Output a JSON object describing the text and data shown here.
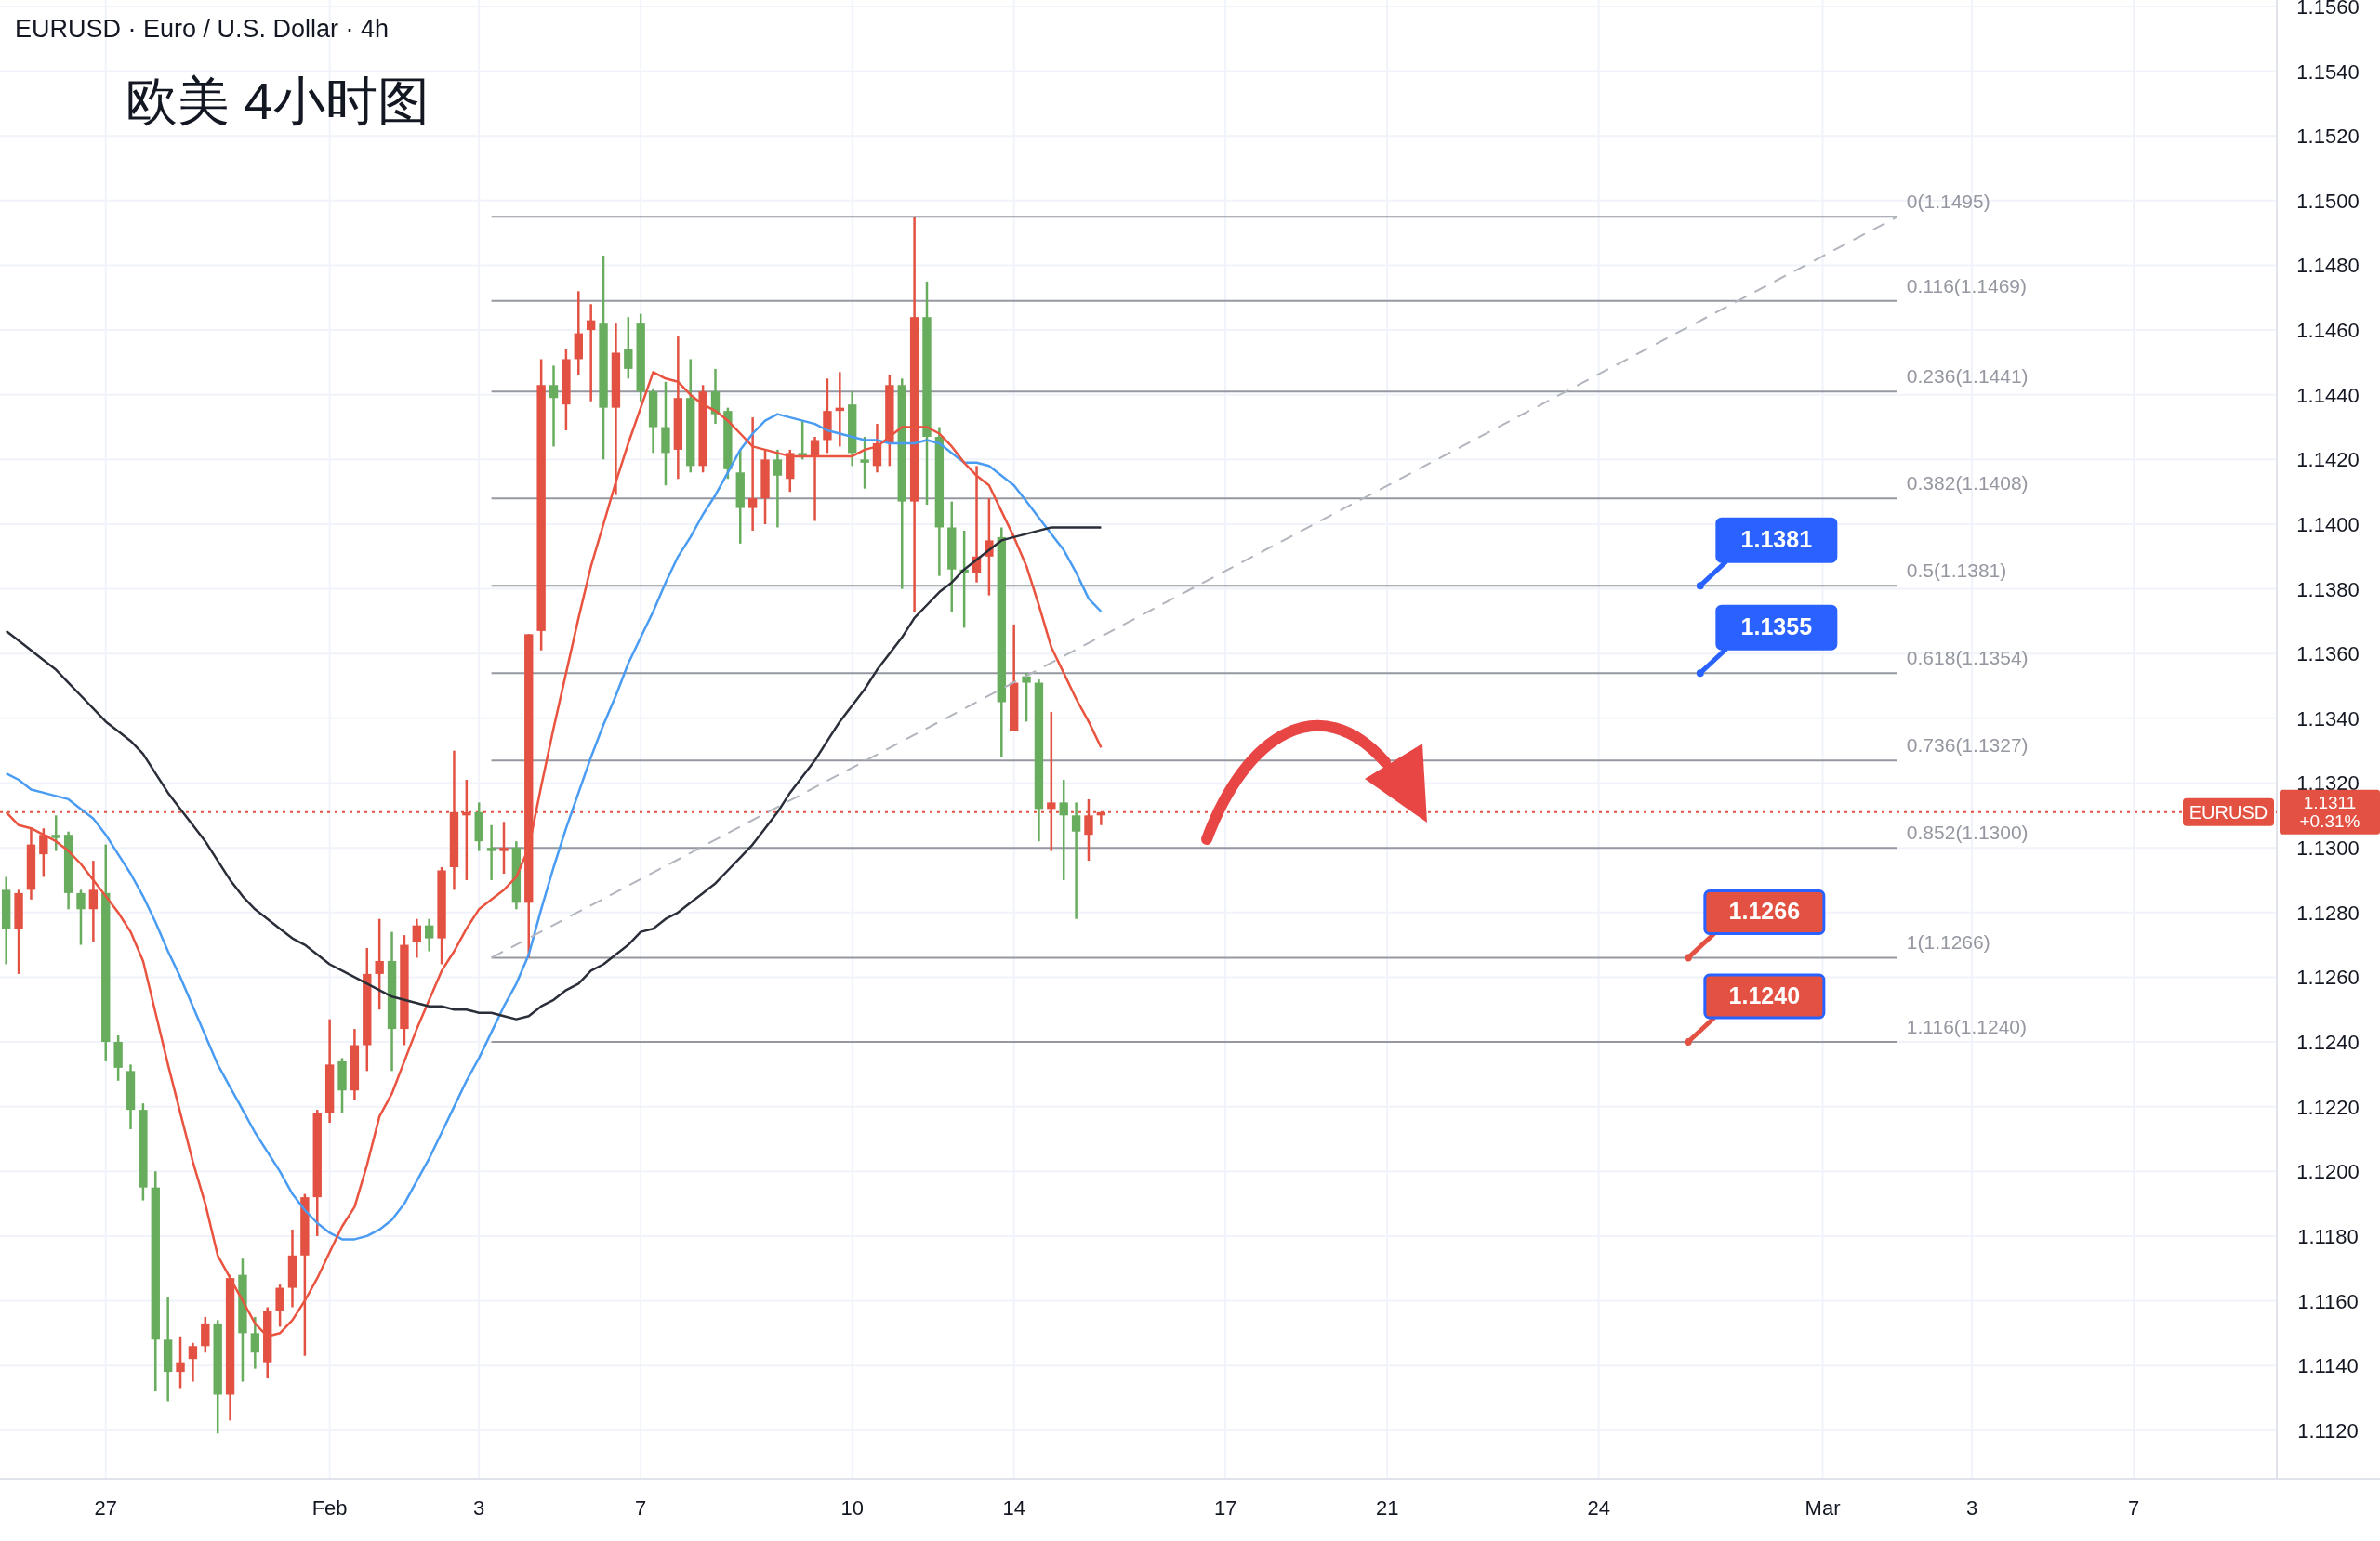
{
  "chart_data": {
    "type": "candlestick",
    "title": "EURUSD · Euro / U.S. Dollar · 4h",
    "subtitle": "欧美 4小时图",
    "categories": [
      null,
      null,
      null,
      null,
      null,
      null,
      null,
      null,
      "27",
      null,
      null,
      null,
      null,
      null,
      null,
      null,
      null,
      null,
      null,
      null,
      null,
      null,
      null,
      null,
      null,
      null,
      "Feb",
      null,
      null,
      null,
      null,
      null,
      null,
      null,
      null,
      null,
      null,
      null,
      "3",
      null,
      null,
      null,
      null,
      null,
      null,
      null,
      null,
      null,
      null,
      null,
      null,
      "7",
      null,
      null,
      null,
      null,
      null,
      null,
      null,
      null,
      null,
      null,
      null,
      null,
      null,
      null,
      null,
      null,
      "10",
      null,
      null,
      null,
      null,
      null,
      null,
      null,
      null,
      null,
      null,
      null,
      null,
      "14",
      null,
      null,
      null,
      null,
      null,
      null,
      null,
      null,
      null,
      null,
      null,
      null,
      null,
      null,
      null,
      null,
      "17",
      null,
      null,
      null,
      null,
      null,
      null,
      null,
      null,
      null,
      null,
      null,
      null,
      "21",
      null,
      null,
      null,
      null,
      null,
      null,
      null,
      null,
      null,
      null,
      null,
      null,
      null,
      null,
      null,
      null,
      "24",
      null,
      null,
      null,
      null,
      null,
      null,
      null,
      null,
      null,
      null,
      null,
      null,
      null,
      null,
      null,
      null,
      null,
      "Mar",
      null,
      null,
      null,
      null,
      null,
      null,
      null,
      null,
      null,
      null,
      null,
      "3",
      null,
      null,
      null,
      null,
      null,
      null,
      null,
      null,
      null,
      null,
      null,
      null,
      "7",
      null,
      null,
      null,
      null,
      null,
      null,
      null,
      null,
      null,
      null,
      null
    ],
    "ohlc": [
      [
        1.1287,
        1.1291,
        1.1264,
        1.1275
      ],
      [
        1.1275,
        1.1287,
        1.1261,
        1.1286
      ],
      [
        1.1287,
        1.1306,
        1.1284,
        1.1301
      ],
      [
        1.1298,
        1.1306,
        1.1291,
        1.1304
      ],
      [
        1.1304,
        1.131,
        1.1299,
        1.1303
      ],
      [
        1.1304,
        1.1305,
        1.1281,
        1.1286
      ],
      [
        1.1286,
        1.1287,
        1.127,
        1.1281
      ],
      [
        1.1281,
        1.1296,
        1.1271,
        1.1287
      ],
      [
        1.1286,
        1.1301,
        1.1234,
        1.124
      ],
      [
        1.124,
        1.1242,
        1.1228,
        1.1232
      ],
      [
        1.1231,
        1.1233,
        1.1213,
        1.1219
      ],
      [
        1.1219,
        1.1221,
        1.1191,
        1.1195
      ],
      [
        1.1195,
        1.12,
        1.1132,
        1.1148
      ],
      [
        1.1148,
        1.1161,
        1.1129,
        1.1138
      ],
      [
        1.1138,
        1.1149,
        1.1133,
        1.1141
      ],
      [
        1.1142,
        1.1147,
        1.1135,
        1.1146
      ],
      [
        1.1146,
        1.1155,
        1.1144,
        1.1153
      ],
      [
        1.1153,
        1.1154,
        1.1119,
        1.1131
      ],
      [
        1.1131,
        1.1168,
        1.1123,
        1.1167
      ],
      [
        1.1168,
        1.1173,
        1.1135,
        1.115
      ],
      [
        1.115,
        1.1155,
        1.1139,
        1.1144
      ],
      [
        1.1141,
        1.1158,
        1.1136,
        1.1157
      ],
      [
        1.1157,
        1.1165,
        1.1152,
        1.1164
      ],
      [
        1.1164,
        1.1182,
        1.1158,
        1.1174
      ],
      [
        1.1174,
        1.1193,
        1.1143,
        1.1192
      ],
      [
        1.1192,
        1.1219,
        1.118,
        1.1218
      ],
      [
        1.1218,
        1.1247,
        1.1215,
        1.1233
      ],
      [
        1.1234,
        1.1235,
        1.1218,
        1.1225
      ],
      [
        1.1225,
        1.1244,
        1.1222,
        1.1239
      ],
      [
        1.1239,
        1.1269,
        1.1231,
        1.1261
      ],
      [
        1.1261,
        1.1278,
        1.125,
        1.1265
      ],
      [
        1.1265,
        1.1274,
        1.1231,
        1.1244
      ],
      [
        1.1244,
        1.1273,
        1.1239,
        1.127
      ],
      [
        1.1271,
        1.1278,
        1.1266,
        1.1276
      ],
      [
        1.1276,
        1.1278,
        1.1268,
        1.1272
      ],
      [
        1.1272,
        1.1294,
        1.1264,
        1.1293
      ],
      [
        1.1294,
        1.133,
        1.1287,
        1.1311
      ],
      [
        1.131,
        1.1321,
        1.129,
        1.1311
      ],
      [
        1.1311,
        1.1314,
        1.1299,
        1.1302
      ],
      [
        1.13,
        1.1307,
        1.129,
        1.1299
      ],
      [
        1.1299,
        1.1308,
        1.1292,
        1.13
      ],
      [
        1.13,
        1.1302,
        1.1281,
        1.1283
      ],
      [
        1.1283,
        1.1366,
        1.1266,
        1.1366
      ],
      [
        1.1367,
        1.1451,
        1.1361,
        1.1443
      ],
      [
        1.1443,
        1.1449,
        1.1424,
        1.1439
      ],
      [
        1.1437,
        1.1454,
        1.1429,
        1.1451
      ],
      [
        1.1451,
        1.1472,
        1.1446,
        1.1459
      ],
      [
        1.146,
        1.1468,
        1.1438,
        1.1463
      ],
      [
        1.1462,
        1.1483,
        1.142,
        1.1436
      ],
      [
        1.1436,
        1.1462,
        1.1409,
        1.1453
      ],
      [
        1.1454,
        1.1464,
        1.1445,
        1.1448
      ],
      [
        1.1462,
        1.1465,
        1.1438,
        1.1441
      ],
      [
        1.1441,
        1.1442,
        1.1422,
        1.143
      ],
      [
        1.143,
        1.1444,
        1.1412,
        1.1422
      ],
      [
        1.1423,
        1.1458,
        1.1414,
        1.1439
      ],
      [
        1.1439,
        1.1451,
        1.1416,
        1.1418
      ],
      [
        1.1418,
        1.1443,
        1.1416,
        1.1441
      ],
      [
        1.1441,
        1.1448,
        1.1431,
        1.1434
      ],
      [
        1.1435,
        1.1436,
        1.1414,
        1.1417
      ],
      [
        1.1416,
        1.1423,
        1.1394,
        1.1405
      ],
      [
        1.1405,
        1.1433,
        1.1398,
        1.1408
      ],
      [
        1.1408,
        1.1423,
        1.14,
        1.142
      ],
      [
        1.142,
        1.1423,
        1.1399,
        1.1415
      ],
      [
        1.1414,
        1.1423,
        1.141,
        1.1422
      ],
      [
        1.1422,
        1.1432,
        1.142,
        1.1421
      ],
      [
        1.1421,
        1.1427,
        1.1401,
        1.1426
      ],
      [
        1.1426,
        1.1445,
        1.1422,
        1.1435
      ],
      [
        1.1435,
        1.1447,
        1.1424,
        1.1436
      ],
      [
        1.1437,
        1.1441,
        1.1418,
        1.1422
      ],
      [
        1.142,
        1.1427,
        1.1411,
        1.1419
      ],
      [
        1.1418,
        1.1431,
        1.1416,
        1.1425
      ],
      [
        1.1425,
        1.1446,
        1.1418,
        1.1443
      ],
      [
        1.1443,
        1.1445,
        1.138,
        1.1407
      ],
      [
        1.1407,
        1.1495,
        1.1373,
        1.1464
      ],
      [
        1.1464,
        1.1475,
        1.1406,
        1.1427
      ],
      [
        1.1427,
        1.143,
        1.1384,
        1.1399
      ],
      [
        1.1399,
        1.1407,
        1.1373,
        1.1386
      ],
      [
        1.1386,
        1.1398,
        1.1368,
        1.1385
      ],
      [
        1.1385,
        1.1418,
        1.1382,
        1.139
      ],
      [
        1.139,
        1.1408,
        1.1378,
        1.1395
      ],
      [
        1.1396,
        1.1399,
        1.1328,
        1.1345
      ],
      [
        1.1336,
        1.1369,
        1.1336,
        1.1351
      ],
      [
        1.1353,
        1.1354,
        1.1339,
        1.1351
      ],
      [
        1.1351,
        1.1352,
        1.1302,
        1.1312
      ],
      [
        1.1312,
        1.1342,
        1.1299,
        1.1314
      ],
      [
        1.1314,
        1.1321,
        1.129,
        1.131
      ],
      [
        1.131,
        1.1314,
        1.1278,
        1.1305
      ],
      [
        1.1304,
        1.1315,
        1.1296,
        1.131
      ],
      [
        1.131,
        1.1311,
        1.1307,
        1.1311
      ],
      null,
      null,
      null,
      null,
      null,
      null,
      null,
      null,
      null,
      null,
      null,
      null,
      null,
      null,
      null,
      null,
      null,
      null,
      null,
      null,
      null,
      null,
      null,
      null,
      null,
      null,
      null,
      null,
      null,
      null,
      null,
      null,
      null,
      null,
      null,
      null,
      null,
      null,
      null,
      null,
      null,
      null,
      null,
      null,
      null,
      null,
      null,
      null,
      null,
      null,
      null,
      null,
      null,
      null,
      null,
      null,
      null,
      null,
      null,
      null,
      null,
      null,
      null,
      null,
      null,
      null,
      null,
      null,
      null,
      null,
      null,
      null,
      null,
      null,
      null,
      null,
      null,
      null,
      null,
      null,
      null,
      null,
      null,
      null,
      null,
      null,
      null,
      null,
      null,
      null,
      null,
      null,
      null,
      null
    ],
    "colors": [
      "#68ad5d",
      "#e25141",
      "#e25141",
      "#e25141",
      "#68ad5d",
      "#68ad5d",
      "#68ad5d",
      "#e25141",
      "#68ad5d",
      "#68ad5d",
      "#68ad5d",
      "#68ad5d",
      "#68ad5d",
      "#68ad5d",
      "#e25141",
      "#e25141",
      "#e25141",
      "#68ad5d",
      "#e25141",
      "#68ad5d",
      "#68ad5d",
      "#e25141",
      "#e25141",
      "#e25141",
      "#e25141",
      "#e25141",
      "#e25141",
      "#68ad5d",
      "#e25141",
      "#e25141",
      "#e25141",
      "#68ad5d",
      "#e25141",
      "#e25141",
      "#68ad5d",
      "#e25141",
      "#e25141",
      "#e25141",
      "#68ad5d",
      "#68ad5d",
      "#e25141",
      "#68ad5d",
      "#e25141",
      "#e25141",
      "#68ad5d",
      "#e25141",
      "#e25141",
      "#e25141",
      "#68ad5d",
      "#e25141",
      "#68ad5d",
      "#68ad5d",
      "#68ad5d",
      "#68ad5d",
      "#e25141",
      "#68ad5d",
      "#e25141",
      "#68ad5d",
      "#68ad5d",
      "#68ad5d",
      "#e25141",
      "#e25141",
      "#68ad5d",
      "#e25141",
      "#68ad5d",
      "#e25141",
      "#e25141",
      "#e25141",
      "#68ad5d",
      "#68ad5d",
      "#e25141",
      "#e25141",
      "#68ad5d",
      "#e25141",
      "#68ad5d",
      "#68ad5d",
      "#68ad5d",
      "#68ad5d",
      "#e25141",
      "#e25141",
      "#68ad5d",
      "#e25141",
      "#68ad5d",
      "#68ad5d",
      "#e25141",
      "#68ad5d",
      "#68ad5d",
      "#e25141",
      "#e25141",
      null,
      null,
      null,
      null,
      null,
      null,
      null,
      null,
      null,
      null,
      null,
      null,
      null,
      null,
      null,
      null,
      null,
      null,
      null,
      null,
      null,
      null,
      null,
      null,
      null,
      null,
      null,
      null,
      null,
      null,
      null,
      null,
      null,
      null,
      null,
      null,
      null,
      null,
      null,
      null,
      null,
      null,
      null,
      null,
      null,
      null,
      null,
      null,
      null,
      null,
      null,
      null,
      null,
      null,
      null,
      null,
      null,
      null,
      null,
      null,
      null,
      null,
      null,
      null,
      null,
      null,
      null,
      null,
      null,
      null,
      null,
      null,
      null,
      null,
      null,
      null,
      null,
      null,
      null,
      null,
      null,
      null,
      null,
      null,
      null,
      null,
      null,
      null,
      null,
      null,
      null,
      null,
      null,
      null
    ],
    "series": [
      {
        "type": "line",
        "color": "#4a9cf2",
        "values": [
          1.1323,
          1.1321,
          1.1318,
          1.1317,
          1.1316,
          1.1315,
          1.1312,
          1.1309,
          1.1304,
          1.1298,
          1.1292,
          1.1285,
          1.1277,
          1.1268,
          1.126,
          1.1251,
          1.1242,
          1.1233,
          1.1226,
          1.1219,
          1.1212,
          1.1206,
          1.12,
          1.1193,
          1.1188,
          1.1184,
          1.1181,
          1.1179,
          1.1179,
          1.118,
          1.1182,
          1.1185,
          1.119,
          1.1197,
          1.1204,
          1.1212,
          1.122,
          1.1228,
          1.1235,
          1.1243,
          1.1251,
          1.1258,
          1.1267,
          1.1281,
          1.1294,
          1.1306,
          1.1317,
          1.1328,
          1.1338,
          1.1347,
          1.1357,
          1.1365,
          1.1373,
          1.1382,
          1.139,
          1.1396,
          1.1403,
          1.1409,
          1.1416,
          1.1423,
          1.1428,
          1.1432,
          1.1434,
          1.1433,
          1.1432,
          1.1431,
          1.1429,
          1.1428,
          1.1427,
          1.1426,
          1.1426,
          1.1425,
          1.1425,
          1.1425,
          1.1426,
          1.1425,
          1.1422,
          1.1419,
          1.1419,
          1.1418,
          1.1415,
          1.1412,
          1.1407,
          1.1402,
          1.1397,
          1.1392,
          1.1385,
          1.1377,
          1.1373,
          null,
          null,
          null,
          null,
          null,
          null,
          null,
          null,
          null,
          null,
          null,
          null,
          null,
          null,
          null,
          null,
          null,
          null,
          null,
          null,
          null,
          null,
          null,
          null,
          null,
          null,
          null,
          null,
          null,
          null,
          null,
          null,
          null,
          null,
          null,
          null,
          null,
          null,
          null,
          null,
          null,
          null,
          null,
          null,
          null,
          null,
          null,
          null,
          null,
          null,
          null,
          null,
          null,
          null,
          null,
          null,
          null,
          null,
          null,
          null,
          null,
          null,
          null,
          null,
          null,
          null,
          null,
          null,
          null,
          null,
          null,
          null,
          null,
          null,
          null,
          null,
          null,
          null,
          null,
          null,
          null,
          null,
          null,
          null,
          null,
          null,
          null,
          null,
          null,
          null,
          null,
          null,
          null,
          null
        ]
      },
      {
        "type": "line",
        "color": "#e9533f",
        "values": [
          1.1311,
          1.1307,
          1.1306,
          1.1304,
          1.1302,
          1.1299,
          1.1295,
          1.129,
          1.1285,
          1.128,
          1.1274,
          1.1265,
          1.1249,
          1.1233,
          1.1218,
          1.1203,
          1.119,
          1.1174,
          1.1167,
          1.116,
          1.1153,
          1.1149,
          1.115,
          1.1154,
          1.116,
          1.1167,
          1.1175,
          1.1183,
          1.1189,
          1.1202,
          1.1217,
          1.1224,
          1.1234,
          1.1244,
          1.1253,
          1.1262,
          1.1268,
          1.1275,
          1.1281,
          1.1284,
          1.1287,
          1.1291,
          1.13,
          1.1319,
          1.1337,
          1.1354,
          1.1371,
          1.1387,
          1.14,
          1.1413,
          1.1425,
          1.1436,
          1.1447,
          1.1445,
          1.1444,
          1.144,
          1.1437,
          1.1435,
          1.1432,
          1.1428,
          1.1424,
          1.1423,
          1.1422,
          1.1421,
          1.1421,
          1.1421,
          1.1421,
          1.1421,
          1.1421,
          1.1423,
          1.1424,
          1.1427,
          1.143,
          1.143,
          1.143,
          1.1428,
          1.1424,
          1.1419,
          1.1415,
          1.1412,
          1.1404,
          1.1396,
          1.1387,
          1.1375,
          1.1362,
          1.1354,
          1.1346,
          1.1339,
          1.1331,
          null,
          null,
          null,
          null,
          null,
          null,
          null,
          null,
          null,
          null,
          null,
          null,
          null,
          null,
          null,
          null,
          null,
          null,
          null,
          null,
          null,
          null,
          null,
          null,
          null,
          null,
          null,
          null,
          null,
          null,
          null,
          null,
          null,
          null,
          null,
          null,
          null,
          null,
          null,
          null,
          null,
          null,
          null,
          null,
          null,
          null,
          null,
          null,
          null,
          null,
          null,
          null,
          null,
          null,
          null,
          null,
          null,
          null,
          null,
          null,
          null,
          null,
          null,
          null,
          null,
          null,
          null,
          null,
          null,
          null,
          null,
          null,
          null,
          null,
          null,
          null,
          null,
          null,
          null,
          null,
          null,
          null,
          null,
          null,
          null,
          null,
          null,
          null,
          null,
          null,
          null,
          null,
          null,
          null
        ]
      },
      {
        "type": "line",
        "color": "#2a2e39",
        "values": [
          1.1367,
          1.1364,
          1.1361,
          1.1358,
          1.1355,
          1.1351,
          1.1347,
          1.1343,
          1.1339,
          1.1336,
          1.1333,
          1.1329,
          1.1323,
          1.1317,
          1.1312,
          1.1307,
          1.1302,
          1.1296,
          1.129,
          1.1285,
          1.1281,
          1.1278,
          1.1275,
          1.1272,
          1.127,
          1.1267,
          1.1264,
          1.1262,
          1.126,
          1.1258,
          1.1256,
          1.1254,
          1.1253,
          1.1252,
          1.1251,
          1.1251,
          1.125,
          1.125,
          1.1249,
          1.1249,
          1.1248,
          1.1247,
          1.1248,
          1.1251,
          1.1253,
          1.1256,
          1.1258,
          1.1262,
          1.1264,
          1.1267,
          1.127,
          1.1274,
          1.1275,
          1.1278,
          1.128,
          1.1283,
          1.1286,
          1.1289,
          1.1293,
          1.1297,
          1.1301,
          1.1306,
          1.1311,
          1.1317,
          1.1322,
          1.1327,
          1.1333,
          1.1339,
          1.1344,
          1.1349,
          1.1355,
          1.136,
          1.1365,
          1.1371,
          1.1375,
          1.1379,
          1.1382,
          1.1386,
          1.1389,
          1.1392,
          1.1395,
          1.1396,
          1.1397,
          1.1398,
          1.1399,
          1.1399,
          1.1399,
          1.1399,
          1.1399,
          null,
          null,
          null,
          null,
          null,
          null,
          null,
          null,
          null,
          null,
          null,
          null,
          null,
          null,
          null,
          null,
          null,
          null,
          null,
          null,
          null,
          null,
          null,
          null,
          null,
          null,
          null,
          null,
          null,
          null,
          null,
          null,
          null,
          null,
          null,
          null,
          null,
          null,
          null,
          null,
          null,
          null,
          null,
          null,
          null,
          null,
          null,
          null,
          null,
          null,
          null,
          null,
          null,
          null,
          null,
          null,
          null,
          null,
          null,
          null,
          null,
          null,
          null,
          null,
          null,
          null,
          null,
          null,
          null,
          null,
          null,
          null,
          null,
          null,
          null,
          null,
          null,
          null,
          null,
          null,
          null,
          null,
          null,
          null,
          null,
          null,
          null,
          null,
          null,
          null,
          null,
          null,
          null,
          null
        ]
      },
      {
        "type": "line",
        "color": "#b2b5be",
        "line_style": "dashed",
        "values": [
          null,
          null,
          null,
          null,
          null,
          null,
          null,
          null,
          null,
          null,
          null,
          null,
          null,
          null,
          null,
          null,
          null,
          null,
          null,
          null,
          null,
          null,
          null,
          null,
          null,
          null,
          null,
          null,
          null,
          null,
          null,
          null,
          null,
          null,
          null,
          null,
          null,
          null,
          null,
          1.1266,
          null,
          null,
          null,
          null,
          null,
          null,
          null,
          null,
          null,
          null,
          null,
          null,
          null,
          null,
          null,
          null,
          null,
          null,
          null,
          null,
          null,
          null,
          null,
          null,
          null,
          null,
          null,
          null,
          null,
          null,
          null,
          null,
          null,
          null,
          null,
          null,
          null,
          null,
          null,
          null,
          null,
          null,
          null,
          null,
          null,
          null,
          null,
          null,
          null,
          null,
          null,
          null,
          null,
          null,
          null,
          null,
          null,
          null,
          null,
          null,
          null,
          null,
          null,
          null,
          null,
          null,
          null,
          null,
          null,
          null,
          null,
          null,
          null,
          null,
          null,
          null,
          null,
          null,
          null,
          null,
          null,
          null,
          null,
          null,
          null,
          null,
          null,
          null,
          null,
          null,
          null,
          null,
          null,
          null,
          null,
          null,
          null,
          null,
          null,
          null,
          null,
          null,
          null,
          null,
          null,
          null,
          null,
          null,
          null,
          null,
          null,
          null,
          1.1495,
          null,
          null,
          null,
          null,
          null,
          null,
          null,
          null,
          null,
          null,
          null,
          null,
          null,
          null,
          null,
          null,
          null,
          null,
          null,
          null,
          null,
          null,
          null,
          null,
          null,
          null,
          null,
          null,
          null,
          null
        ]
      }
    ],
    "ref_lines": [
      {
        "axis": "y",
        "value": 1.1495,
        "label": "0(1.1495)",
        "color": "#9598a1"
      },
      {
        "axis": "y",
        "value": 1.1469,
        "label": "0.116(1.1469)",
        "color": "#9598a1"
      },
      {
        "axis": "y",
        "value": 1.1441,
        "label": "0.236(1.1441)",
        "color": "#9598a1"
      },
      {
        "axis": "y",
        "value": 1.1408,
        "label": "0.382(1.1408)",
        "color": "#9598a1"
      },
      {
        "axis": "y",
        "value": 1.1381,
        "label": "0.5(1.1381)",
        "color": "#9598a1"
      },
      {
        "axis": "y",
        "value": 1.1354,
        "label": "0.618(1.1354)",
        "color": "#9598a1"
      },
      {
        "axis": "y",
        "value": 1.1327,
        "label": "0.736(1.1327)",
        "color": "#9598a1"
      },
      {
        "axis": "y",
        "value": 1.13,
        "label": "0.852(1.1300)",
        "color": "#9598a1"
      },
      {
        "axis": "y",
        "value": 1.1266,
        "label": "1(1.1266)",
        "color": "#9598a1"
      },
      {
        "axis": "y",
        "value": 1.124,
        "label": "1.116(1.1240)",
        "color": "#9598a1"
      },
      {
        "axis": "y",
        "value": 1.1311,
        "label": "EURUSD",
        "color": "#e25141",
        "line_style": "dotted"
      }
    ],
    "annotations": [
      "1.1311",
      "+0.31%",
      {
        "text": "1.1381",
        "y": 1.1381
      },
      {
        "text": "1.1355",
        "y": 1.1354
      },
      {
        "text": "1.1266",
        "y": 1.1266
      },
      {
        "text": "1.1240",
        "y": 1.124
      }
    ],
    "ylim": [
      1.1105,
      1.1562
    ],
    "yticks": [
      {
        "value": 1.112,
        "label": "1.1120"
      },
      {
        "value": 1.114,
        "label": "1.1140"
      },
      {
        "value": 1.116,
        "label": "1.1160"
      },
      {
        "value": 1.118,
        "label": "1.1180"
      },
      {
        "value": 1.12,
        "label": "1.1200"
      },
      {
        "value": 1.122,
        "label": "1.1220"
      },
      {
        "value": 1.124,
        "label": "1.1240"
      },
      {
        "value": 1.126,
        "label": "1.1260"
      },
      {
        "value": 1.128,
        "label": "1.1280"
      },
      {
        "value": 1.13,
        "label": "1.1300"
      },
      {
        "value": 1.132,
        "label": "1.1320"
      },
      {
        "value": 1.134,
        "label": "1.1340"
      },
      {
        "value": 1.136,
        "label": "1.1360"
      },
      {
        "value": 1.138,
        "label": "1.1380"
      },
      {
        "value": 1.14,
        "label": "1.1400"
      },
      {
        "value": 1.142,
        "label": "1.1420"
      },
      {
        "value": 1.144,
        "label": "1.1440"
      },
      {
        "value": 1.146,
        "label": "1.1460"
      },
      {
        "value": 1.148,
        "label": "1.1480"
      },
      {
        "value": 1.15,
        "label": "1.1500"
      },
      {
        "value": 1.152,
        "label": "1.1520"
      },
      {
        "value": 1.154,
        "label": "1.1540"
      },
      {
        "value": 1.156,
        "label": "1.1560"
      }
    ],
    "grid": true
  }
}
